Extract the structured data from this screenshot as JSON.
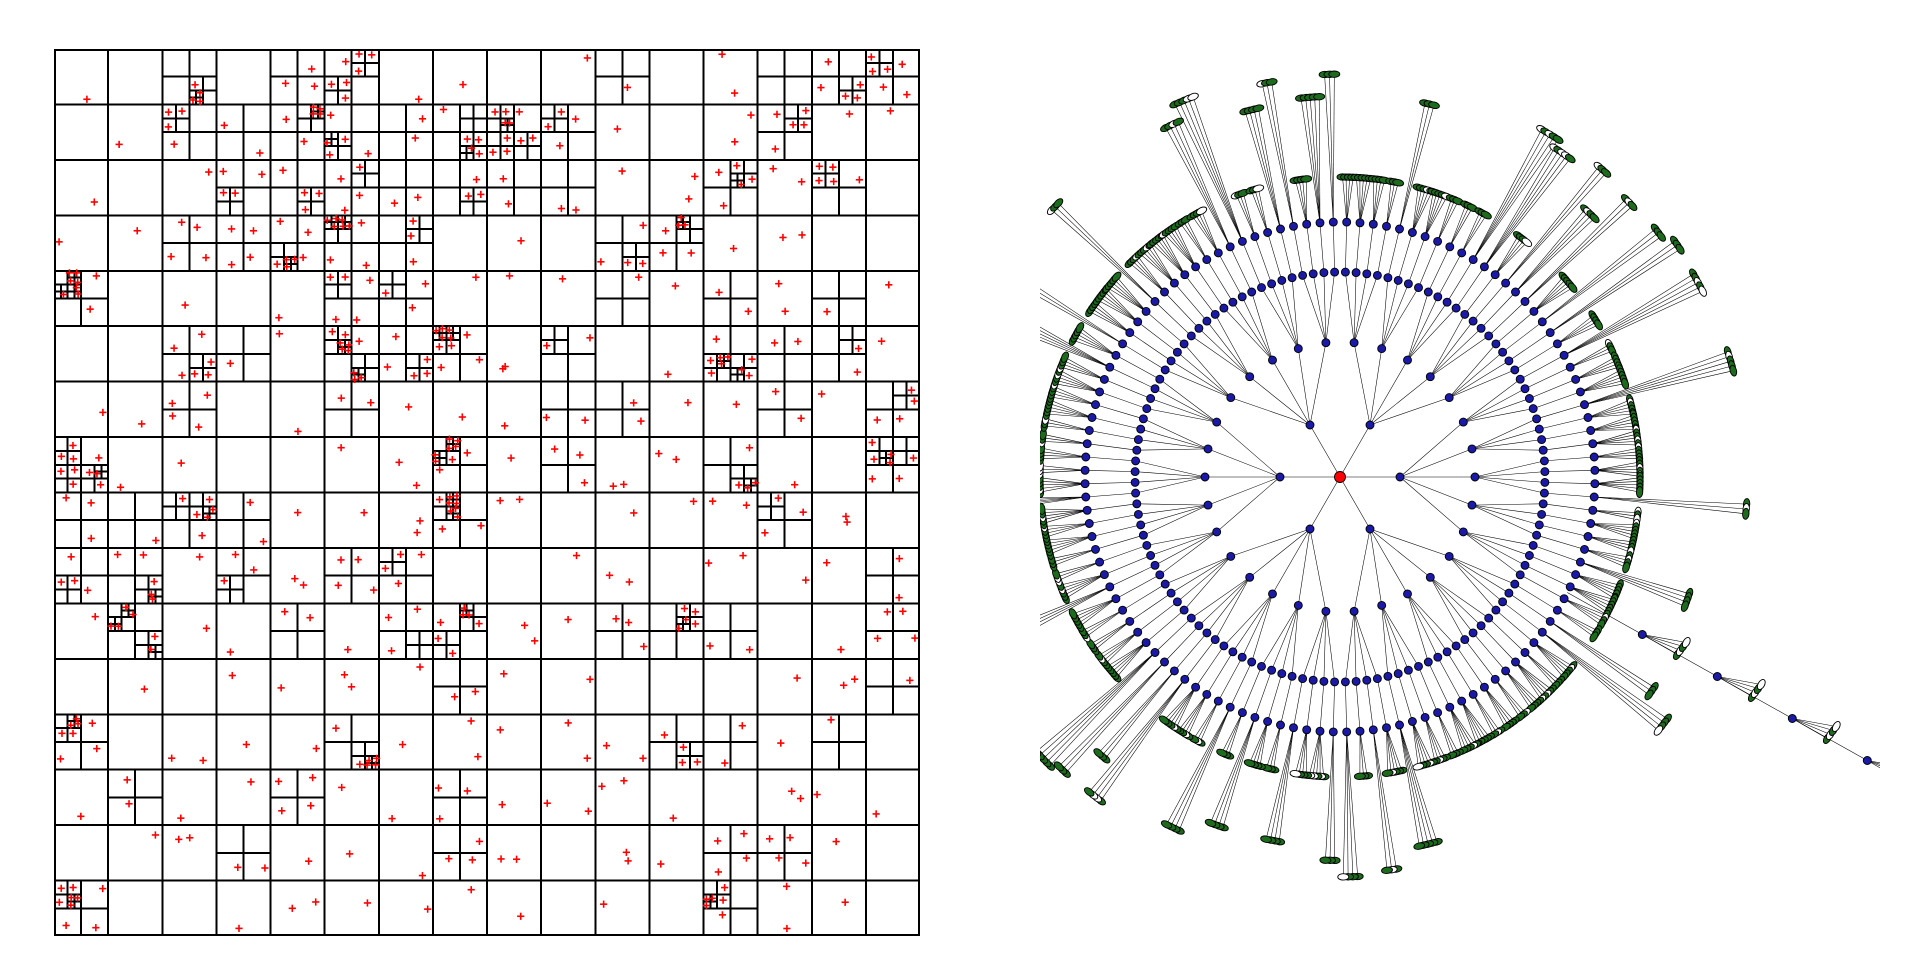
{
  "figure": {
    "left_panel": {
      "kind": "quadtree",
      "point_marker": "plus",
      "point_color": "#ff0000",
      "line_color": "#000000",
      "background": "#ffffff"
    },
    "right_panel": {
      "kind": "radial-tree",
      "edge_color": "#000000",
      "root_color": "#ff0000",
      "node_colors": {
        "internal": "#1a1aa6",
        "leaf": "#1d6b1d",
        "hollow": "#ffffff"
      }
    }
  }
}
